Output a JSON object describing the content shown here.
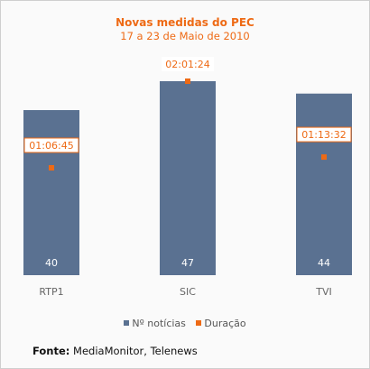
{
  "chart_data": {
    "type": "bar",
    "title": "Novas medidas do PEC",
    "subtitle": "17 a 23 de Maio de 2010",
    "categories": [
      "RTP1",
      "SIC",
      "TVI"
    ],
    "series": [
      {
        "name": "Nº notícias",
        "type": "bar",
        "values": [
          40,
          47,
          44
        ],
        "color": "#5a7191"
      },
      {
        "name": "Duração",
        "type": "point",
        "values": [
          "01:06:45",
          "02:01:24",
          "01:13:32"
        ],
        "color": "#ee6a15"
      }
    ],
    "legend_position": "bottom",
    "grid": false
  },
  "source": {
    "label": "Fonte:",
    "text": " MediaMonitor, Telenews"
  }
}
